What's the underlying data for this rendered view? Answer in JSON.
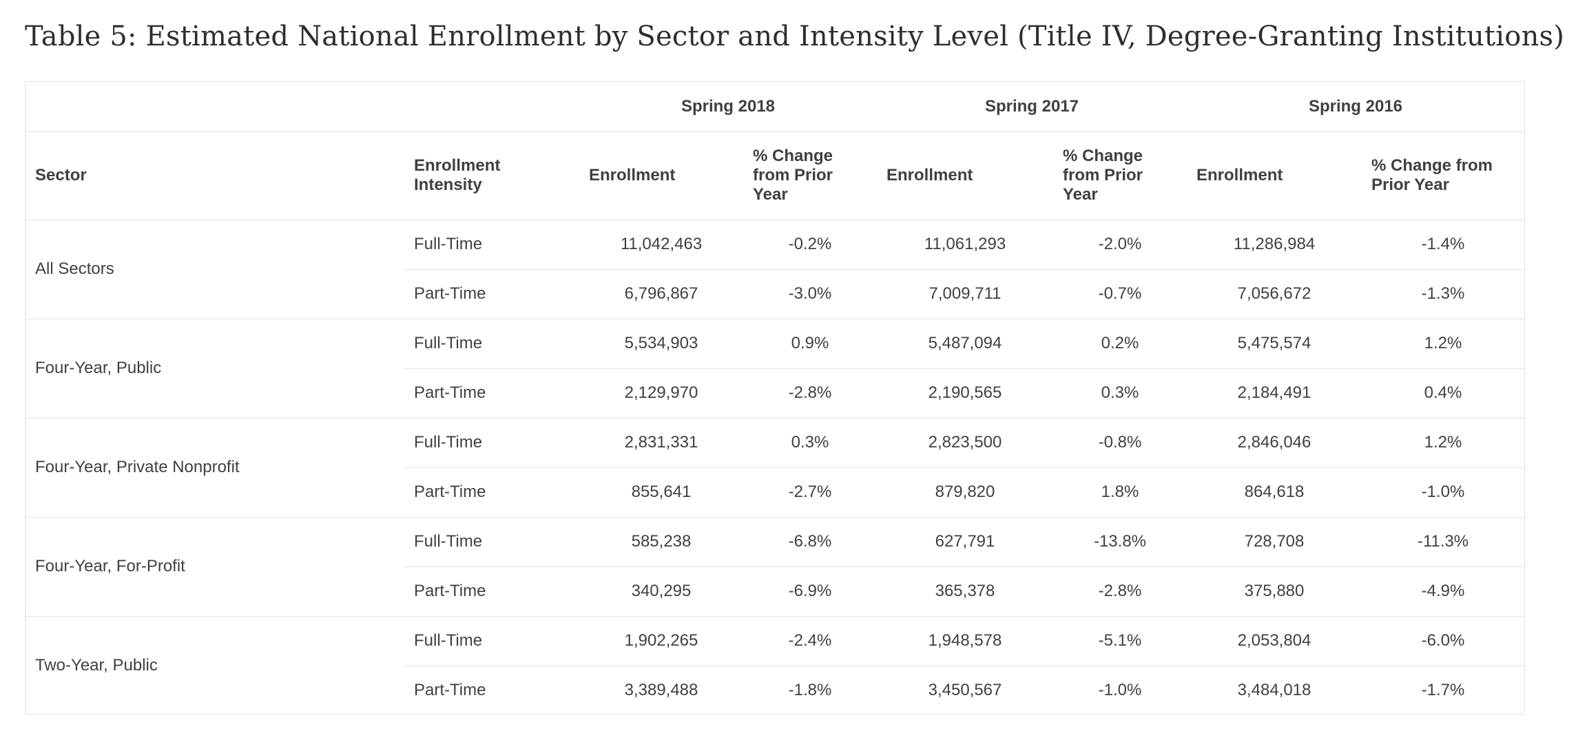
{
  "title": "Table 5: Estimated National Enrollment by Sector and Intensity Level (Title IV, Degree-Granting Institutions)",
  "table": {
    "group_headers": [
      "Spring 2018",
      "Spring 2017",
      "Spring 2016"
    ],
    "column_headers": {
      "sector": "Sector",
      "intensity": "Enrollment Intensity",
      "enroll_2018": "Enrollment",
      "change_2018": "% Change from Prior Year",
      "enroll_2017": "Enrollment",
      "change_2017": "% Change from Prior Year",
      "enroll_2016": "Enrollment",
      "change_2016": "% Change from Prior Year"
    },
    "sectors": [
      {
        "name": "All Sectors",
        "rows": [
          {
            "intensity": "Full-Time",
            "values": [
              "11,042,463",
              "-0.2%",
              "11,061,293",
              "-2.0%",
              "11,286,984",
              "-1.4%"
            ]
          },
          {
            "intensity": "Part-Time",
            "values": [
              "6,796,867",
              "-3.0%",
              "7,009,711",
              "-0.7%",
              "7,056,672",
              "-1.3%"
            ]
          }
        ]
      },
      {
        "name": "Four-Year, Public",
        "rows": [
          {
            "intensity": "Full-Time",
            "values": [
              "5,534,903",
              "0.9%",
              "5,487,094",
              "0.2%",
              "5,475,574",
              "1.2%"
            ]
          },
          {
            "intensity": "Part-Time",
            "values": [
              "2,129,970",
              "-2.8%",
              "2,190,565",
              "0.3%",
              "2,184,491",
              "0.4%"
            ]
          }
        ]
      },
      {
        "name": "Four-Year, Private Nonprofit",
        "rows": [
          {
            "intensity": "Full-Time",
            "values": [
              "2,831,331",
              "0.3%",
              "2,823,500",
              "-0.8%",
              "2,846,046",
              "1.2%"
            ]
          },
          {
            "intensity": "Part-Time",
            "values": [
              "855,641",
              "-2.7%",
              "879,820",
              "1.8%",
              "864,618",
              "-1.0%"
            ]
          }
        ]
      },
      {
        "name": "Four-Year, For-Profit",
        "rows": [
          {
            "intensity": "Full-Time",
            "values": [
              "585,238",
              "-6.8%",
              "627,791",
              "-13.8%",
              "728,708",
              "-11.3%"
            ]
          },
          {
            "intensity": "Part-Time",
            "values": [
              "340,295",
              "-6.9%",
              "365,378",
              "-2.8%",
              "375,880",
              "-4.9%"
            ]
          }
        ]
      },
      {
        "name": "Two-Year, Public",
        "rows": [
          {
            "intensity": "Full-Time",
            "values": [
              "1,902,265",
              "-2.4%",
              "1,948,578",
              "-5.1%",
              "2,053,804",
              "-6.0%"
            ]
          },
          {
            "intensity": "Part-Time",
            "values": [
              "3,389,488",
              "-1.8%",
              "3,450,567",
              "-1.0%",
              "3,484,018",
              "-1.7%"
            ]
          }
        ]
      }
    ]
  }
}
